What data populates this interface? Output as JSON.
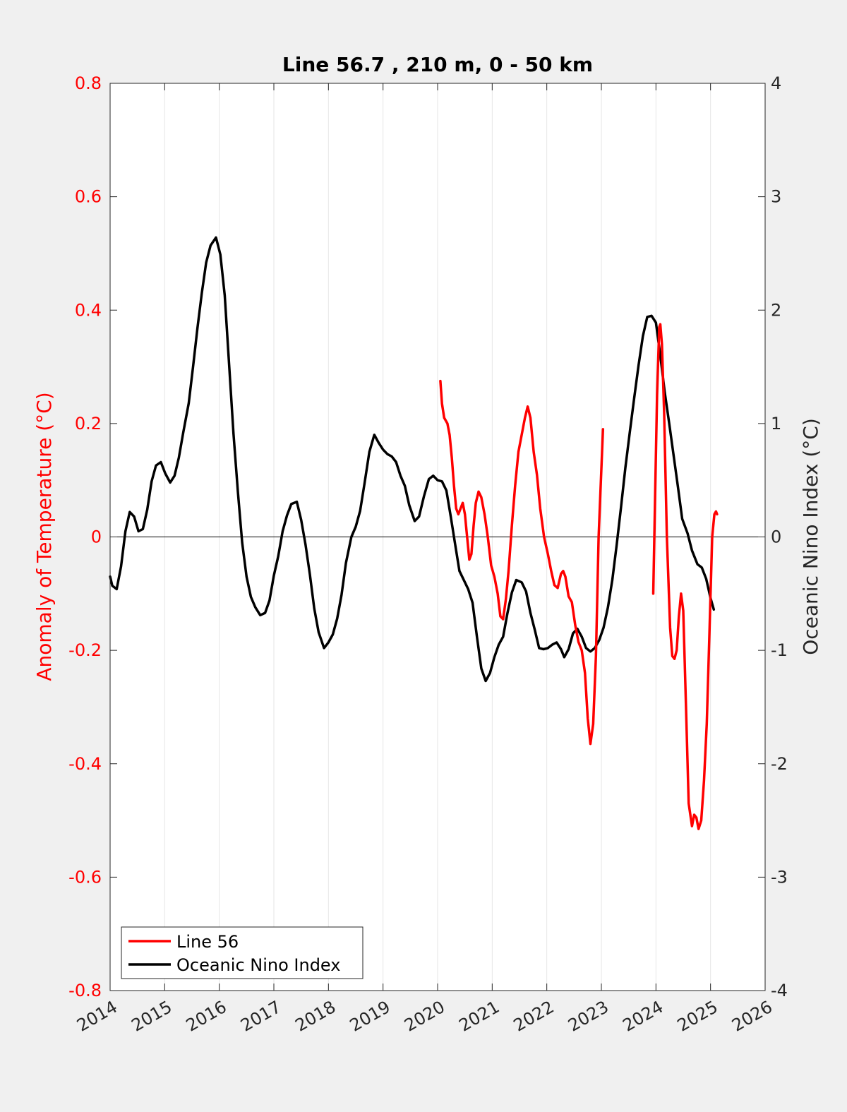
{
  "chart_data": {
    "type": "line",
    "title": "Line 56.7 , 210 m, 0 - 50 km",
    "ylabel_left": "Anomaly of Temperature (°C)",
    "ylabel_right": "Oceanic Nino Index (°C)",
    "xlabel": "",
    "xlim": [
      2014,
      2026
    ],
    "ylim_left": [
      -0.8,
      0.8
    ],
    "ylim_right": [
      -4,
      4
    ],
    "x_ticks": [
      2014,
      2015,
      2016,
      2017,
      2018,
      2019,
      2020,
      2021,
      2022,
      2023,
      2024,
      2025,
      2026
    ],
    "y_ticks_left": [
      "0.8",
      "0.6",
      "0.4",
      "0.2",
      "0",
      "-0.2",
      "-0.4",
      "-0.6",
      "-0.8"
    ],
    "y_ticks_left_values": [
      0.8,
      0.6,
      0.4,
      0.2,
      0,
      -0.2,
      -0.4,
      -0.6,
      -0.8
    ],
    "y_ticks_right": [
      "4",
      "3",
      "2",
      "1",
      "0",
      "-1",
      "-2",
      "-3",
      "-4"
    ],
    "y_ticks_right_values": [
      4,
      3,
      2,
      1,
      0,
      -1,
      -2,
      -3,
      -4
    ],
    "grid": "vertical",
    "zero_line": true,
    "legend_position": "bottom-left",
    "series": [
      {
        "name": "Line 56",
        "axis": "left",
        "color": "#ff0000",
        "segments": [
          [
            [
              2020.05,
              0.275
            ],
            [
              2020.08,
              0.235
            ],
            [
              2020.12,
              0.21
            ],
            [
              2020.18,
              0.2
            ],
            [
              2020.22,
              0.18
            ],
            [
              2020.26,
              0.14
            ],
            [
              2020.3,
              0.09
            ],
            [
              2020.34,
              0.05
            ],
            [
              2020.38,
              0.04
            ],
            [
              2020.42,
              0.05
            ],
            [
              2020.46,
              0.06
            ],
            [
              2020.5,
              0.04
            ],
            [
              2020.54,
              0.0
            ],
            [
              2020.58,
              -0.04
            ],
            [
              2020.62,
              -0.03
            ],
            [
              2020.66,
              0.02
            ],
            [
              2020.7,
              0.06
            ],
            [
              2020.75,
              0.08
            ],
            [
              2020.8,
              0.07
            ],
            [
              2020.86,
              0.04
            ],
            [
              2020.92,
              0.0
            ],
            [
              2020.98,
              -0.05
            ],
            [
              2021.04,
              -0.07
            ],
            [
              2021.1,
              -0.1
            ],
            [
              2021.15,
              -0.14
            ],
            [
              2021.2,
              -0.145
            ],
            [
              2021.25,
              -0.11
            ],
            [
              2021.3,
              -0.06
            ],
            [
              2021.36,
              0.02
            ],
            [
              2021.42,
              0.09
            ],
            [
              2021.48,
              0.15
            ],
            [
              2021.54,
              0.18
            ],
            [
              2021.6,
              0.21
            ],
            [
              2021.65,
              0.23
            ],
            [
              2021.7,
              0.21
            ],
            [
              2021.76,
              0.15
            ],
            [
              2021.82,
              0.11
            ],
            [
              2021.88,
              0.05
            ],
            [
              2021.95,
              0.0
            ],
            [
              2022.02,
              -0.03
            ],
            [
              2022.08,
              -0.06
            ],
            [
              2022.14,
              -0.085
            ],
            [
              2022.2,
              -0.09
            ],
            [
              2022.26,
              -0.065
            ],
            [
              2022.3,
              -0.06
            ],
            [
              2022.34,
              -0.07
            ],
            [
              2022.4,
              -0.105
            ],
            [
              2022.46,
              -0.115
            ],
            [
              2022.52,
              -0.155
            ],
            [
              2022.58,
              -0.185
            ],
            [
              2022.64,
              -0.2
            ],
            [
              2022.7,
              -0.24
            ],
            [
              2022.75,
              -0.32
            ],
            [
              2022.8,
              -0.365
            ],
            [
              2022.85,
              -0.33
            ],
            [
              2022.9,
              -0.21
            ],
            [
              2022.95,
              0.0
            ],
            [
              2023.0,
              0.12
            ],
            [
              2023.03,
              0.19
            ]
          ],
          [
            [
              2023.95,
              -0.1
            ],
            [
              2023.98,
              0.05
            ],
            [
              2024.02,
              0.25
            ],
            [
              2024.06,
              0.37
            ],
            [
              2024.08,
              0.375
            ],
            [
              2024.11,
              0.34
            ],
            [
              2024.15,
              0.22
            ],
            [
              2024.2,
              0.0
            ],
            [
              2024.26,
              -0.16
            ],
            [
              2024.3,
              -0.21
            ],
            [
              2024.34,
              -0.215
            ],
            [
              2024.38,
              -0.2
            ],
            [
              2024.42,
              -0.14
            ],
            [
              2024.46,
              -0.1
            ],
            [
              2024.5,
              -0.13
            ],
            [
              2024.55,
              -0.3
            ],
            [
              2024.6,
              -0.47
            ],
            [
              2024.66,
              -0.51
            ],
            [
              2024.7,
              -0.49
            ],
            [
              2024.74,
              -0.495
            ],
            [
              2024.78,
              -0.515
            ],
            [
              2024.83,
              -0.5
            ],
            [
              2024.88,
              -0.43
            ],
            [
              2024.93,
              -0.33
            ],
            [
              2024.98,
              -0.17
            ],
            [
              2025.03,
              0.0
            ],
            [
              2025.07,
              0.04
            ],
            [
              2025.1,
              0.045
            ],
            [
              2025.12,
              0.04
            ]
          ]
        ]
      },
      {
        "name": "Oceanic Nino Index",
        "axis": "right",
        "color": "#000000",
        "points": [
          [
            2014.0,
            -0.35
          ],
          [
            2014.04,
            -0.43
          ],
          [
            2014.12,
            -0.46
          ],
          [
            2014.2,
            -0.26
          ],
          [
            2014.28,
            0.05
          ],
          [
            2014.36,
            0.22
          ],
          [
            2014.44,
            0.18
          ],
          [
            2014.52,
            0.05
          ],
          [
            2014.6,
            0.07
          ],
          [
            2014.68,
            0.24
          ],
          [
            2014.76,
            0.49
          ],
          [
            2014.84,
            0.63
          ],
          [
            2014.93,
            0.66
          ],
          [
            2015.01,
            0.56
          ],
          [
            2015.1,
            0.48
          ],
          [
            2015.18,
            0.54
          ],
          [
            2015.26,
            0.7
          ],
          [
            2015.34,
            0.92
          ],
          [
            2015.44,
            1.18
          ],
          [
            2015.52,
            1.5
          ],
          [
            2015.6,
            1.84
          ],
          [
            2015.68,
            2.15
          ],
          [
            2015.76,
            2.42
          ],
          [
            2015.84,
            2.57
          ],
          [
            2015.94,
            2.64
          ],
          [
            2016.02,
            2.49
          ],
          [
            2016.1,
            2.13
          ],
          [
            2016.18,
            1.52
          ],
          [
            2016.26,
            0.91
          ],
          [
            2016.34,
            0.4
          ],
          [
            2016.42,
            -0.05
          ],
          [
            2016.5,
            -0.35
          ],
          [
            2016.58,
            -0.53
          ],
          [
            2016.66,
            -0.62
          ],
          [
            2016.75,
            -0.69
          ],
          [
            2016.84,
            -0.67
          ],
          [
            2016.92,
            -0.56
          ],
          [
            2017.0,
            -0.34
          ],
          [
            2017.08,
            -0.17
          ],
          [
            2017.16,
            0.05
          ],
          [
            2017.24,
            0.19
          ],
          [
            2017.32,
            0.29
          ],
          [
            2017.42,
            0.31
          ],
          [
            2017.5,
            0.15
          ],
          [
            2017.58,
            -0.07
          ],
          [
            2017.66,
            -0.33
          ],
          [
            2017.74,
            -0.63
          ],
          [
            2017.82,
            -0.84
          ],
          [
            2017.92,
            -0.98
          ],
          [
            2018.0,
            -0.93
          ],
          [
            2018.08,
            -0.86
          ],
          [
            2018.16,
            -0.72
          ],
          [
            2018.24,
            -0.51
          ],
          [
            2018.32,
            -0.23
          ],
          [
            2018.42,
            0.0
          ],
          [
            2018.5,
            0.09
          ],
          [
            2018.58,
            0.23
          ],
          [
            2018.66,
            0.47
          ],
          [
            2018.75,
            0.75
          ],
          [
            2018.84,
            0.9
          ],
          [
            2018.92,
            0.83
          ],
          [
            2019.0,
            0.77
          ],
          [
            2019.08,
            0.73
          ],
          [
            2019.16,
            0.71
          ],
          [
            2019.24,
            0.66
          ],
          [
            2019.32,
            0.54
          ],
          [
            2019.4,
            0.45
          ],
          [
            2019.48,
            0.28
          ],
          [
            2019.58,
            0.14
          ],
          [
            2019.66,
            0.18
          ],
          [
            2019.75,
            0.36
          ],
          [
            2019.84,
            0.51
          ],
          [
            2019.92,
            0.54
          ],
          [
            2020.0,
            0.5
          ],
          [
            2020.08,
            0.49
          ],
          [
            2020.16,
            0.41
          ],
          [
            2020.24,
            0.18
          ],
          [
            2020.32,
            -0.06
          ],
          [
            2020.4,
            -0.3
          ],
          [
            2020.48,
            -0.38
          ],
          [
            2020.56,
            -0.46
          ],
          [
            2020.64,
            -0.58
          ],
          [
            2020.72,
            -0.88
          ],
          [
            2020.8,
            -1.16
          ],
          [
            2020.88,
            -1.27
          ],
          [
            2020.96,
            -1.2
          ],
          [
            2021.04,
            -1.06
          ],
          [
            2021.12,
            -0.95
          ],
          [
            2021.2,
            -0.88
          ],
          [
            2021.28,
            -0.67
          ],
          [
            2021.36,
            -0.49
          ],
          [
            2021.44,
            -0.38
          ],
          [
            2021.54,
            -0.4
          ],
          [
            2021.62,
            -0.48
          ],
          [
            2021.7,
            -0.67
          ],
          [
            2021.78,
            -0.82
          ],
          [
            2021.86,
            -0.98
          ],
          [
            2021.94,
            -0.99
          ],
          [
            2022.02,
            -0.98
          ],
          [
            2022.1,
            -0.95
          ],
          [
            2022.18,
            -0.93
          ],
          [
            2022.26,
            -0.99
          ],
          [
            2022.32,
            -1.06
          ],
          [
            2022.4,
            -0.99
          ],
          [
            2022.48,
            -0.85
          ],
          [
            2022.56,
            -0.81
          ],
          [
            2022.64,
            -0.88
          ],
          [
            2022.72,
            -0.98
          ],
          [
            2022.8,
            -1.01
          ],
          [
            2022.88,
            -0.98
          ],
          [
            2022.96,
            -0.91
          ],
          [
            2023.04,
            -0.8
          ],
          [
            2023.12,
            -0.62
          ],
          [
            2023.2,
            -0.38
          ],
          [
            2023.28,
            -0.07
          ],
          [
            2023.36,
            0.26
          ],
          [
            2023.44,
            0.61
          ],
          [
            2023.52,
            0.92
          ],
          [
            2023.6,
            1.22
          ],
          [
            2023.68,
            1.51
          ],
          [
            2023.76,
            1.77
          ],
          [
            2023.84,
            1.94
          ],
          [
            2023.92,
            1.95
          ],
          [
            2024.0,
            1.89
          ],
          [
            2024.08,
            1.6
          ],
          [
            2024.16,
            1.28
          ],
          [
            2024.24,
            1.01
          ],
          [
            2024.32,
            0.73
          ],
          [
            2024.4,
            0.45
          ],
          [
            2024.48,
            0.16
          ],
          [
            2024.58,
            0.03
          ],
          [
            2024.66,
            -0.12
          ],
          [
            2024.76,
            -0.24
          ],
          [
            2024.84,
            -0.27
          ],
          [
            2024.92,
            -0.37
          ],
          [
            2025.0,
            -0.54
          ],
          [
            2025.06,
            -0.64
          ]
        ]
      }
    ]
  }
}
